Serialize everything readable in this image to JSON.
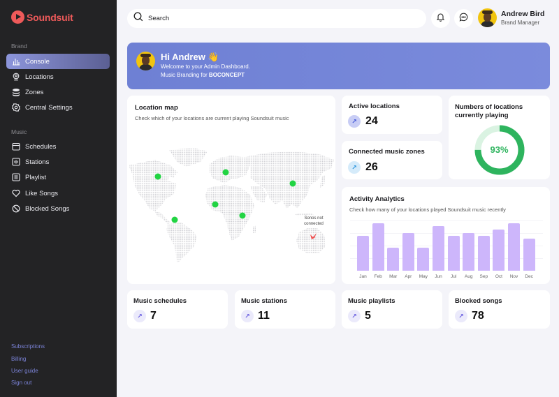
{
  "brand": {
    "name": "Soundsuit",
    "color": "#ee5a5a"
  },
  "sidebar": {
    "brand_section_label": "Brand",
    "brand_items": [
      {
        "label": "Console",
        "icon": "bar-chart-icon",
        "active": true
      },
      {
        "label": "Locations",
        "icon": "location-pin-icon",
        "active": false
      },
      {
        "label": "Zones",
        "icon": "layers-icon",
        "active": false
      },
      {
        "label": "Central Settings",
        "icon": "gear-icon",
        "active": false
      }
    ],
    "music_section_label": "Music",
    "music_items": [
      {
        "label": "Schedules",
        "icon": "calendar-icon"
      },
      {
        "label": "Stations",
        "icon": "radio-icon"
      },
      {
        "label": "Playlist",
        "icon": "playlist-icon"
      },
      {
        "label": "Like Songs",
        "icon": "heart-icon"
      },
      {
        "label": "Blocked Songs",
        "icon": "block-icon"
      }
    ],
    "footer_links": [
      "Subscriptions",
      "Billing",
      "User guide",
      "Sign out"
    ]
  },
  "header": {
    "search": {
      "placeholder": "Search",
      "value": ""
    },
    "notifications_icon": "bell-icon",
    "messages_icon": "chat-icon",
    "user": {
      "name": "Andrew Bird",
      "role": "Brand Manager"
    }
  },
  "welcome": {
    "title": "Hi Andrew 👋",
    "line1": "Welcome to your Admin Dashboard.",
    "line2_prefix": "Music Branding for ",
    "line2_brand": "BOCONCEPT",
    "background": "#7283d8"
  },
  "location_map": {
    "title": "Location map",
    "subtitle": "Check which of your locations are current playing Soundsuit music",
    "active_markers": [
      "North America",
      "South America",
      "Europe",
      "West Africa",
      "East Africa",
      "China"
    ],
    "inactive_markers": [
      "Australia"
    ],
    "tooltip": "Sonos not connected",
    "active_color": "#22d443",
    "inactive_color": "#f04a4a"
  },
  "stats": {
    "active_locations": {
      "label": "Active locations",
      "value": "24",
      "icon": "arrow-up-right-icon"
    },
    "connected_zones": {
      "label": "Connected music zones",
      "value": "26",
      "icon": "arrow-up-right-icon"
    },
    "currently_playing": {
      "label": "Numbers of locations currently playing",
      "value": "93%",
      "color": "#2eb45e"
    }
  },
  "activity": {
    "title": "Activity  Analytics",
    "subtitle": "Check how many of your locations played Soundsuit music recently"
  },
  "bottom_stats": [
    {
      "label": "Music schedules",
      "value": "7"
    },
    {
      "label": "Music stations",
      "value": "11"
    },
    {
      "label": "Music playlists",
      "value": "5"
    },
    {
      "label": "Blocked songs",
      "value": "78"
    }
  ],
  "chart_data": {
    "type": "bar",
    "title": "Activity  Analytics",
    "subtitle": "Check how many of your locations played Soundsuit music recently",
    "categories": [
      "Jan",
      "Feb",
      "Mar",
      "Apr",
      "May",
      "Jun",
      "Jul",
      "Aug",
      "Sep",
      "Oct",
      "Nov",
      "Dec"
    ],
    "values": [
      74,
      100,
      48,
      80,
      48,
      94,
      74,
      80,
      74,
      87,
      100,
      68
    ],
    "xlabel": "",
    "ylabel": "",
    "ylim": [
      0,
      100
    ],
    "grid": true,
    "legend": "none",
    "bar_color": "#cdb6fb"
  }
}
